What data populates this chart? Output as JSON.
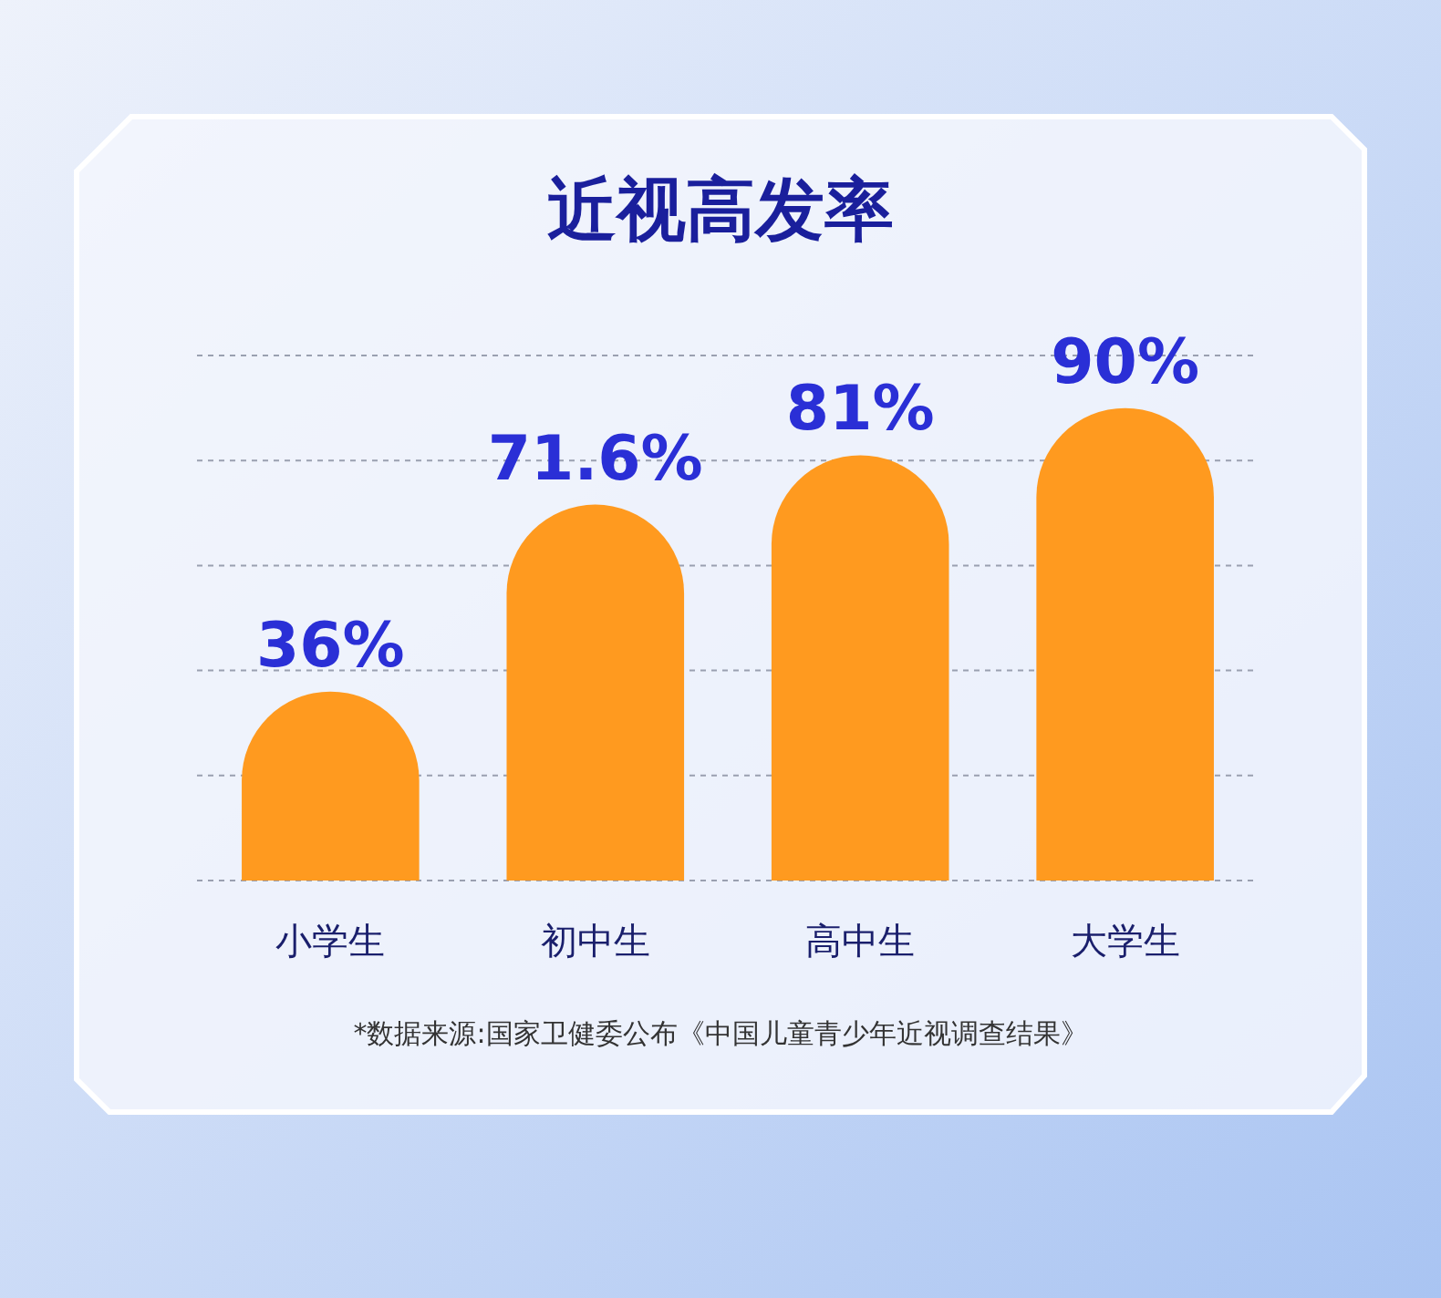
{
  "chart_data": {
    "type": "bar",
    "title": "近视高发率",
    "categories": [
      "小学生",
      "初中生",
      "高中生",
      "大学生"
    ],
    "values": [
      36,
      71.6,
      81,
      90
    ],
    "value_labels": [
      "36%",
      "71.6%",
      "81%",
      "90%"
    ],
    "color": "#ff9a1f",
    "ylim": [
      0,
      100
    ],
    "yticks": [
      {
        "value": 0,
        "label": null
      },
      {
        "value": 20,
        "label": null
      },
      {
        "value": 40,
        "label": null
      },
      {
        "value": 60,
        "label": null
      },
      {
        "value": 80,
        "label": null
      },
      {
        "value": 100,
        "label": null
      }
    ],
    "tick_labels": "x",
    "grid": "y",
    "annotations": [
      "*数据来源:国家卫健委公布《中国儿童青少年近视调查结果》"
    ]
  }
}
